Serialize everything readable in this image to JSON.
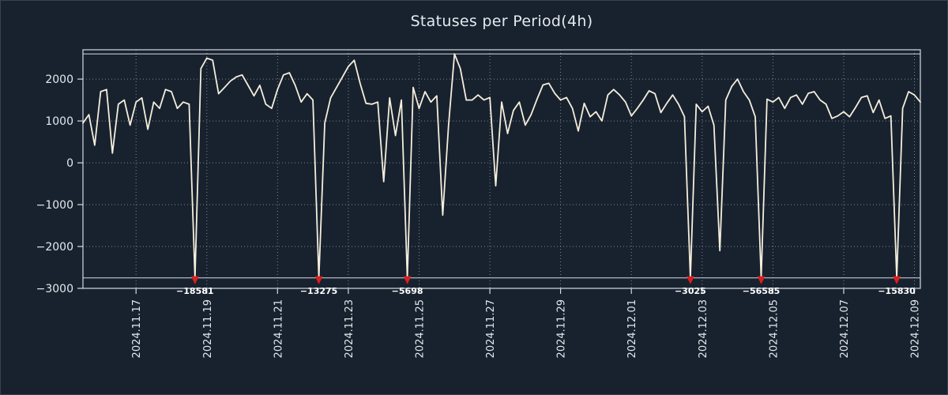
{
  "chart": {
    "title": "Statuses per Period(4h)"
  },
  "chart_data": {
    "type": "line",
    "title": "Statuses per Period(4h)",
    "period_hours": 4,
    "x_ticks": [
      {
        "index": 9,
        "label": "2024.11.17"
      },
      {
        "index": 21,
        "label": "2024.11.19"
      },
      {
        "index": 33,
        "label": "2024.11.21"
      },
      {
        "index": 45,
        "label": "2024.11.23"
      },
      {
        "index": 57,
        "label": "2024.11.25"
      },
      {
        "index": 69,
        "label": "2024.11.27"
      },
      {
        "index": 81,
        "label": "2024.11.29"
      },
      {
        "index": 93,
        "label": "2024.12.01"
      },
      {
        "index": 105,
        "label": "2024.12.03"
      },
      {
        "index": 117,
        "label": "2024.12.05"
      },
      {
        "index": 129,
        "label": "2024.12.07"
      },
      {
        "index": 141,
        "label": "2024.12.09"
      }
    ],
    "y_ticks": [
      {
        "value": 2000,
        "label": "2000"
      },
      {
        "value": 1000,
        "label": "1000"
      },
      {
        "value": 0,
        "label": "0"
      },
      {
        "value": -1000,
        "label": "−1000"
      },
      {
        "value": -2000,
        "label": "−2000"
      },
      {
        "value": -3000,
        "label": "−3000"
      }
    ],
    "ylim": [
      -3000,
      2700
    ],
    "clip_value": -2750,
    "ref_lines": [
      2600,
      -2750
    ],
    "grid": true,
    "values": [
      950,
      1150,
      420,
      1700,
      1750,
      230,
      1400,
      1500,
      900,
      1450,
      1550,
      800,
      1450,
      1300,
      1750,
      1700,
      1300,
      1450,
      1400,
      -18581,
      2250,
      2500,
      2450,
      1650,
      1800,
      1950,
      2050,
      2100,
      1850,
      1600,
      1850,
      1400,
      1300,
      1750,
      2100,
      2150,
      1850,
      1450,
      1650,
      1500,
      -13275,
      950,
      1550,
      1800,
      2050,
      2300,
      2450,
      1900,
      1420,
      1400,
      1450,
      -450,
      1550,
      650,
      1500,
      -5698,
      1800,
      1300,
      1700,
      1450,
      1600,
      -1250,
      900,
      2600,
      2250,
      1500,
      1500,
      1620,
      1500,
      1560,
      -550,
      1450,
      700,
      1250,
      1450,
      900,
      1150,
      1520,
      1860,
      1900,
      1660,
      1500,
      1560,
      1300,
      760,
      1420,
      1100,
      1220,
      1000,
      1620,
      1750,
      1620,
      1450,
      1120,
      1300,
      1500,
      1720,
      1650,
      1200,
      1420,
      1620,
      1400,
      1100,
      -3025,
      1400,
      1220,
      1350,
      900,
      -2100,
      1500,
      1820,
      2000,
      1700,
      1500,
      1100,
      -56585,
      1520,
      1450,
      1560,
      1300,
      1560,
      1620,
      1400,
      1660,
      1700,
      1500,
      1400,
      1060,
      1120,
      1220,
      1100,
      1320,
      1560,
      1600,
      1200,
      1500,
      1060,
      1120,
      -15830,
      1300,
      1700,
      1620,
      1450
    ],
    "annotations": [
      {
        "index": 19,
        "label": "−18581",
        "value": -18581
      },
      {
        "index": 40,
        "label": "−13275",
        "value": -13275
      },
      {
        "index": 55,
        "label": "−5698",
        "value": -5698
      },
      {
        "index": 103,
        "label": "−3025",
        "value": -3025
      },
      {
        "index": 115,
        "label": "−56585",
        "value": -56585
      },
      {
        "index": 138,
        "label": "−15830",
        "value": -15830
      }
    ],
    "colors": {
      "background": "#18222f",
      "line": "#f5eedb",
      "grid": "#97a1ae",
      "frame": "#d3dae1",
      "text": "#e4e9ee",
      "marker": "#dc1f1f",
      "annotation_text": "#ffffff"
    }
  }
}
